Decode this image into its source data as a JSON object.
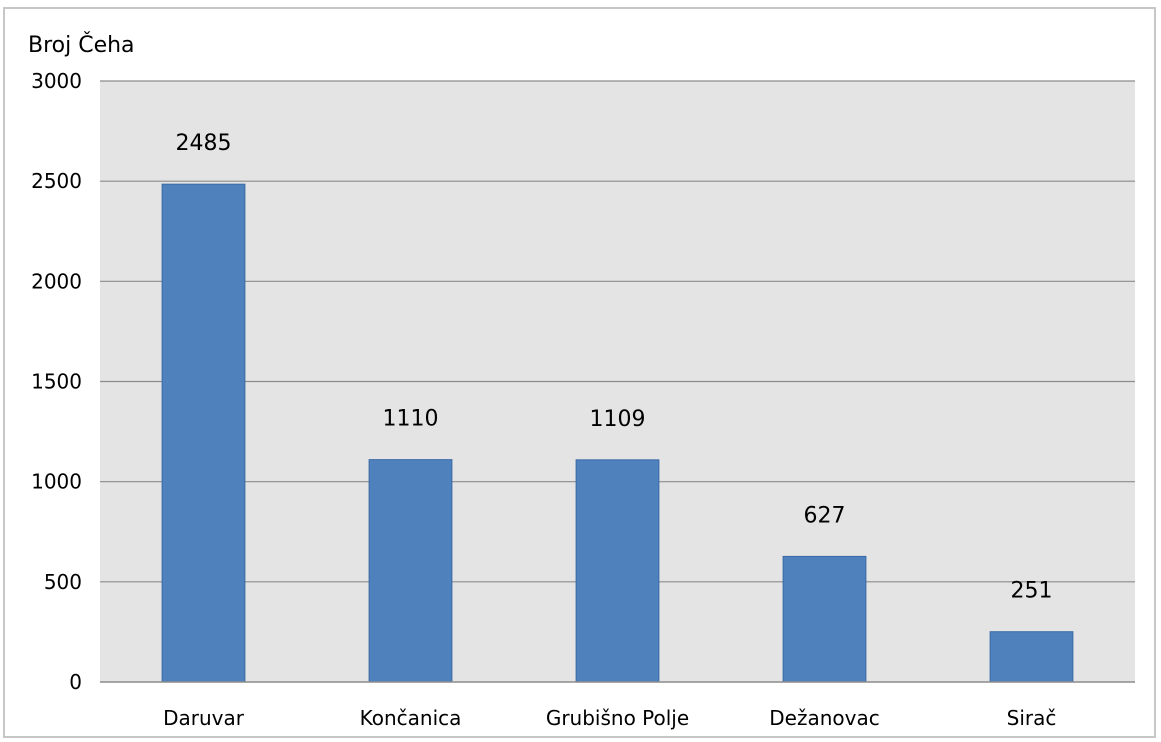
{
  "chart_data": {
    "type": "bar",
    "ylabel": "Broj Čeha",
    "categories": [
      "Daruvar",
      "Končanica",
      "Grubišno Polje",
      "Dežanovac",
      "Sirač"
    ],
    "values": [
      2485,
      1110,
      1109,
      627,
      251
    ],
    "data_labels": [
      "2485",
      "1110",
      "1109",
      "627",
      "251"
    ],
    "ylim": [
      0,
      3000
    ],
    "yticks": [
      0,
      500,
      1000,
      1500,
      2000,
      2500,
      3000
    ],
    "grid": true,
    "legend": "none",
    "colors": {
      "bar": "#4f81bd",
      "bar_edge": "#3a6aa5",
      "plot_bg": "#e4e4e4",
      "grid": "#8c8c8c",
      "frame": "#c7c7c7"
    }
  }
}
